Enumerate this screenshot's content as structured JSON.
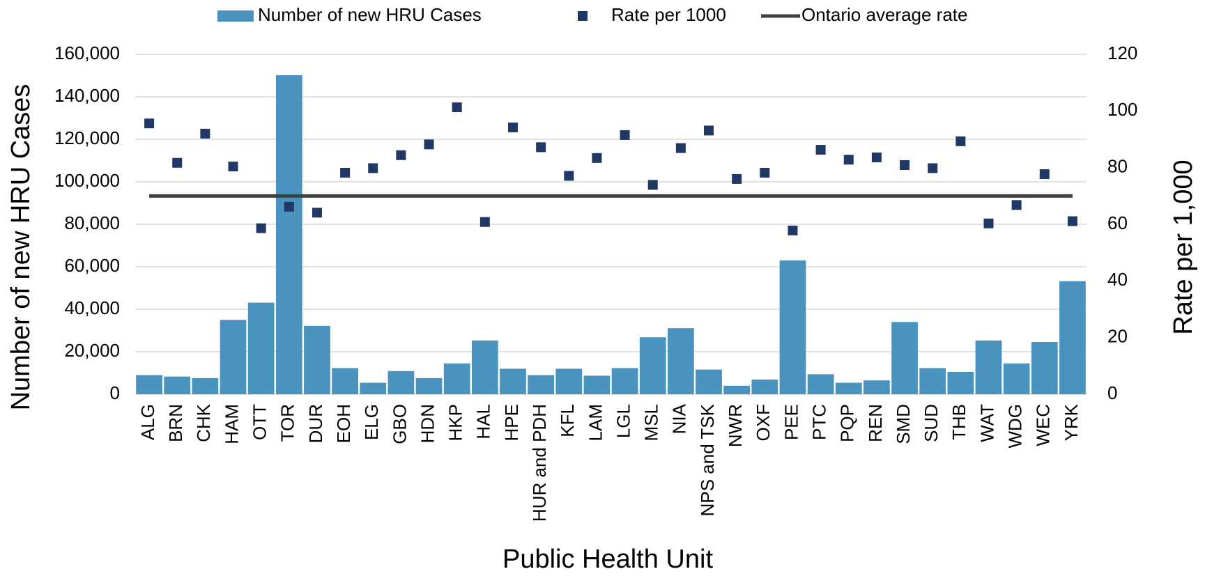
{
  "chart_data": {
    "type": "bar",
    "x_label": "Public Health Unit",
    "y_label": "Number of new  HRU Cases",
    "y2_label": "Rate per 1,000",
    "categories": [
      "ALG",
      "BRN",
      "CHK",
      "HAM",
      "OTT",
      "TOR",
      "DUR",
      "EOH",
      "ELG",
      "GBO",
      "HDN",
      "HKP",
      "HAL",
      "HPE",
      "HUR and PDH",
      "KFL",
      "LAM",
      "LGL",
      "MSL",
      "NIA",
      "NPS and TSK",
      "NWR",
      "OXF",
      "PEE",
      "PTC",
      "PQP",
      "REN",
      "SMD",
      "SUD",
      "THB",
      "WAT",
      "WDG",
      "WEC",
      "YRK"
    ],
    "series": [
      {
        "name": "Number of new HRU Cases",
        "type": "bar",
        "color": "#4a93bf",
        "values": [
          9000,
          8300,
          7600,
          35000,
          43100,
          150200,
          32200,
          12300,
          5400,
          10900,
          7600,
          14500,
          25300,
          12000,
          9000,
          12000,
          8700,
          12300,
          26800,
          31100,
          11600,
          4000,
          6900,
          63000,
          9400,
          5400,
          6500,
          34000,
          12300,
          10500,
          25300,
          14500,
          24600,
          53200
        ]
      },
      {
        "name": "Rate per 1000",
        "type": "scatter",
        "axis": "y2",
        "color": "#1f3864",
        "values": [
          95.6,
          81.7,
          92,
          80.4,
          58.6,
          66.2,
          64.1,
          78.2,
          79.8,
          84.4,
          88.2,
          101.3,
          60.8,
          94.2,
          87.2,
          77.1,
          83.4,
          91.5,
          73.9,
          86.9,
          93.1,
          76,
          78.2,
          57.8,
          86.3,
          82.8,
          83.6,
          80.9,
          79.8,
          89.3,
          60.3,
          66.8,
          77.7,
          61.1
        ]
      },
      {
        "name": "Ontario average rate",
        "type": "hline",
        "axis": "y2",
        "color": "#404040",
        "value": 70
      }
    ],
    "ylim": [
      0,
      160000
    ],
    "yticks": [
      0,
      {
        "value": 20000,
        "label": "20,000"
      },
      {
        "value": 40000,
        "label": "40,000"
      },
      {
        "value": 60000,
        "label": "60,000"
      },
      {
        "value": 80000,
        "label": "80,000"
      },
      {
        "value": 100000,
        "label": "100,000"
      },
      {
        "value": 120000,
        "label": "120,000"
      },
      {
        "value": 140000,
        "label": "140,000"
      },
      {
        "value": 160000,
        "label": "160,000"
      }
    ],
    "y2lim": [
      0,
      120
    ],
    "y2ticks": [
      0,
      20,
      40,
      60,
      80,
      100,
      120
    ],
    "grid": true,
    "legend": "top"
  }
}
